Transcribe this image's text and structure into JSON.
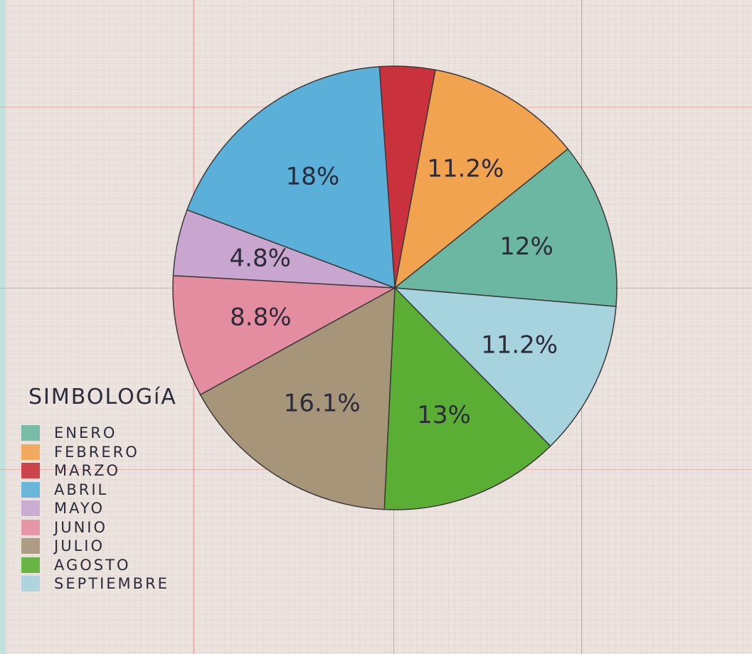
{
  "chart_data": {
    "type": "pie",
    "legend_title": "SIMBOLOGíA",
    "legend_position": "bottom-left",
    "start_angle_deg": -4,
    "slices": [
      {
        "label": "MARZO",
        "value": 4,
        "display": "",
        "color": "#c9323c"
      },
      {
        "label": "FEBRERO",
        "value": 11.2,
        "display": "11.2%",
        "color": "#f2a350"
      },
      {
        "label": "ENERO",
        "value": 12,
        "display": "12%",
        "color": "#6cb7a2"
      },
      {
        "label": "SEPTIEMBRE",
        "value": 11.2,
        "display": "11.2%",
        "color": "#a7d3df"
      },
      {
        "label": "AGOSTO",
        "value": 13,
        "display": "13%",
        "color": "#5aae34"
      },
      {
        "label": "JULIO",
        "value": 16.1,
        "display": "16.1%",
        "color": "#a7957a"
      },
      {
        "label": "JUNIO",
        "value": 8.8,
        "display": "8.8%",
        "color": "#e58da0"
      },
      {
        "label": "MAYO",
        "value": 4.8,
        "display": "4.8%",
        "color": "#c8a6cf"
      },
      {
        "label": "ABRIL",
        "value": 18,
        "display": "18%",
        "color": "#5ab0d9"
      }
    ],
    "legend": [
      {
        "label": "ENERO",
        "color": "#6cb7a2"
      },
      {
        "label": "FEBRERO",
        "color": "#f2a350"
      },
      {
        "label": "MARZO",
        "color": "#c9323c"
      },
      {
        "label": "ABRIL",
        "color": "#5ab0d9"
      },
      {
        "label": "MAYO",
        "color": "#c8a6cf"
      },
      {
        "label": "JUNIO",
        "color": "#e58da0"
      },
      {
        "label": "JULIO",
        "color": "#a7957a"
      },
      {
        "label": "AGOSTO",
        "color": "#5aae34"
      },
      {
        "label": "SEPTIEMBRE",
        "color": "#a7d3df"
      }
    ]
  }
}
